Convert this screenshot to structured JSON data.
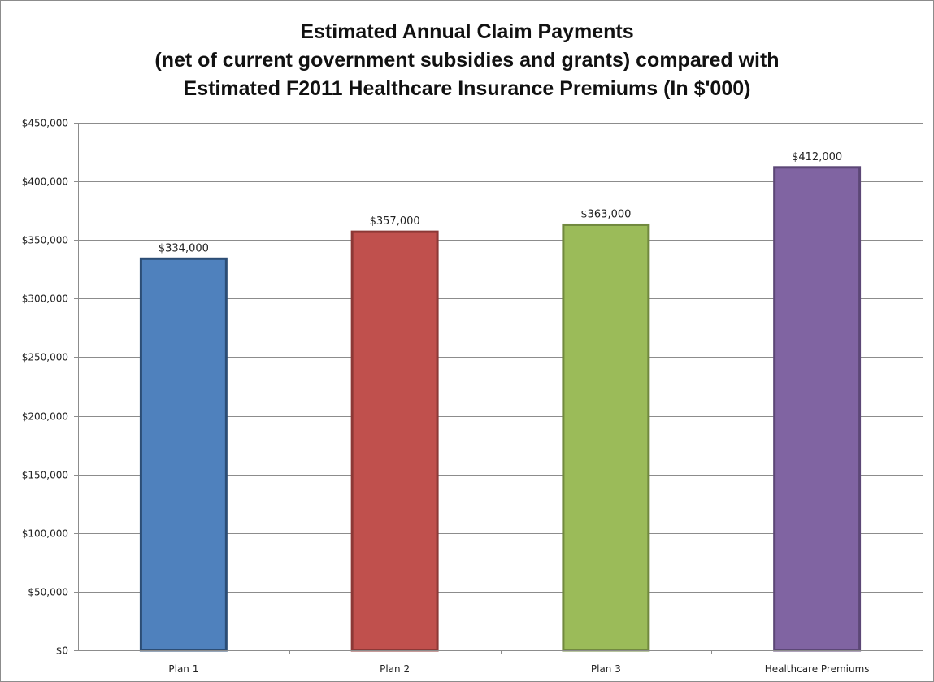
{
  "chart_data": {
    "type": "bar",
    "title_lines": [
      "Estimated Annual Claim Payments",
      "(net of current government subsidies and grants) compared with",
      "Estimated F2011 Healthcare Insurance Premiums (In $'000)"
    ],
    "categories": [
      "Plan 1",
      "Plan 2",
      "Plan 3",
      "Healthcare Premiums"
    ],
    "values": [
      334000,
      357000,
      363000,
      412000
    ],
    "data_labels": [
      "$334,000",
      "$357,000",
      "$363,000",
      "$412,000"
    ],
    "y_ticks": [
      0,
      50000,
      100000,
      150000,
      200000,
      250000,
      300000,
      350000,
      400000,
      450000
    ],
    "y_tick_labels": [
      "$0",
      "$50,000",
      "$100,000",
      "$150,000",
      "$200,000",
      "$250,000",
      "$300,000",
      "$350,000",
      "$400,000",
      "$450,000"
    ],
    "ylim": [
      0,
      450000
    ],
    "grid": true,
    "legend": "none",
    "colors": {
      "fills": [
        "#4f81bd",
        "#c0504d",
        "#9bbb59",
        "#8064a2"
      ],
      "strokes": [
        "#2c4d75",
        "#8c3836",
        "#71893f",
        "#5c4776"
      ],
      "grid": "#8c8c8c"
    }
  }
}
